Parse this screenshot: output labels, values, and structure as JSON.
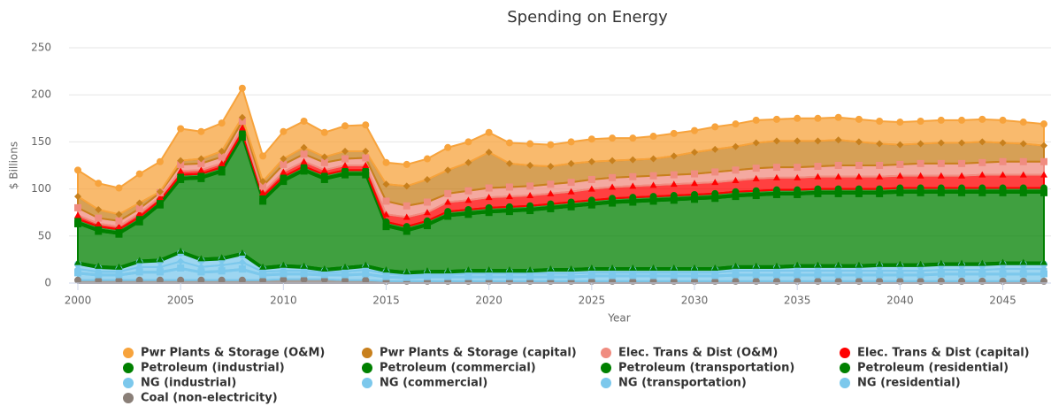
{
  "chart_data": {
    "type": "area_stacked",
    "title": "Spending on Energy",
    "x_label": "Year",
    "y_label": "$ Billions",
    "xlim": [
      2000,
      2047
    ],
    "xticks": [
      2000,
      2005,
      2010,
      2015,
      2020,
      2025,
      2030,
      2035,
      2040,
      2045
    ],
    "ylim": [
      0,
      250
    ],
    "yticks": [
      0,
      50,
      100,
      150,
      200,
      250
    ],
    "grid": true,
    "x": [
      2000,
      2001,
      2002,
      2003,
      2004,
      2005,
      2006,
      2007,
      2008,
      2009,
      2010,
      2011,
      2012,
      2013,
      2014,
      2015,
      2016,
      2017,
      2018,
      2019,
      2020,
      2021,
      2022,
      2023,
      2024,
      2025,
      2026,
      2027,
      2028,
      2029,
      2030,
      2031,
      2032,
      2033,
      2034,
      2035,
      2036,
      2037,
      2038,
      2039,
      2040,
      2041,
      2042,
      2043,
      2044,
      2045,
      2046,
      2047
    ],
    "series": [
      {
        "name": "Pwr Plants & Storage (O&M)",
        "color": "#f7a33c",
        "values": [
          28,
          28,
          28,
          31,
          32,
          34,
          29,
          30,
          31,
          27,
          29,
          28,
          26,
          27,
          28,
          23,
          23,
          22,
          24,
          22,
          21,
          22,
          23,
          23,
          23,
          24,
          24,
          23,
          24,
          24,
          23,
          24,
          24,
          24,
          23,
          24,
          24,
          24,
          24,
          24,
          24,
          24,
          24,
          24,
          24,
          24,
          23,
          23
        ]
      },
      {
        "name": "Pwr Plants & Storage (capital)",
        "color": "#c8801d",
        "values": [
          12,
          9,
          7,
          6,
          1,
          4,
          5,
          6,
          4,
          5,
          6,
          7,
          6,
          8,
          7,
          18,
          21,
          24,
          25,
          30,
          38,
          25,
          22,
          19,
          20,
          19,
          18,
          18,
          18,
          20,
          23,
          24,
          25,
          27,
          28,
          28,
          27,
          27,
          25,
          23,
          21,
          21,
          22,
          22,
          22,
          20,
          19,
          17
        ]
      },
      {
        "name": "Elec. Trans & Dist (O&M)",
        "color": "#f08c80",
        "values": [
          8,
          6,
          6,
          5,
          5,
          7,
          7,
          7,
          7,
          7,
          8,
          8,
          8,
          7,
          8,
          14,
          12,
          11,
          9,
          10,
          10,
          10,
          10,
          10,
          10,
          10,
          10,
          10,
          10,
          10,
          10,
          11,
          11,
          11,
          11,
          11,
          11,
          12,
          12,
          12,
          12,
          13,
          13,
          13,
          13,
          14,
          14,
          14
        ]
      },
      {
        "name": "Elec. Trans & Dist (capital)",
        "color": "#ff0000",
        "values": [
          4,
          3,
          3,
          4,
          3,
          4,
          4,
          4,
          5,
          4,
          5,
          5,
          5,
          5,
          5,
          8,
          10,
          9,
          10,
          10,
          11,
          11,
          11,
          11,
          11,
          12,
          12,
          12,
          12,
          12,
          12,
          12,
          12,
          13,
          13,
          13,
          13,
          13,
          13,
          13,
          13,
          13,
          13,
          13,
          14,
          14,
          14,
          14
        ]
      },
      {
        "name": "Petroleum (industrial)",
        "color": "#008000",
        "values": [
          3,
          3,
          3,
          3,
          3,
          3,
          3,
          3,
          3,
          3,
          3,
          3,
          3,
          3,
          3,
          3,
          3,
          3,
          3,
          3,
          3,
          3,
          3,
          3,
          3,
          3,
          3,
          3,
          3,
          3,
          3,
          3,
          3,
          3,
          3,
          3,
          3,
          3,
          3,
          3,
          3,
          3,
          3,
          3,
          3,
          3,
          3,
          3
        ]
      },
      {
        "name": "Petroleum (commercial)",
        "color": "#008000",
        "values": [
          2,
          2,
          2,
          2,
          2,
          2,
          2,
          2,
          2,
          2,
          2,
          2,
          2,
          2,
          2,
          2,
          2,
          2,
          2,
          2,
          2,
          2,
          2,
          2,
          2,
          2,
          2,
          2,
          2,
          2,
          2,
          2,
          2,
          2,
          2,
          2,
          2,
          2,
          2,
          2,
          2,
          2,
          2,
          2,
          2,
          2,
          2,
          2
        ]
      },
      {
        "name": "Petroleum (transportation)",
        "color": "#008000",
        "values": [
          41,
          37,
          35,
          41,
          58,
          76,
          85,
          91,
          123,
          70,
          89,
          101,
          95,
          98,
          96,
          46,
          43,
          48,
          58,
          59,
          61,
          62,
          63,
          64,
          66,
          67,
          69,
          70,
          71,
          72,
          73,
          74,
          74,
          75,
          76,
          75,
          76,
          76,
          76,
          75,
          76,
          76,
          75,
          75,
          75,
          74,
          74,
          74
        ]
      },
      {
        "name": "Petroleum (residential)",
        "color": "#008000",
        "values": [
          2,
          2,
          2,
          2,
          2,
          2,
          2,
          2,
          2,
          2,
          2,
          2,
          2,
          2,
          2,
          2,
          2,
          2,
          2,
          2,
          2,
          2,
          2,
          2,
          2,
          2,
          2,
          2,
          2,
          2,
          2,
          2,
          2,
          2,
          2,
          2,
          2,
          2,
          2,
          2,
          2,
          2,
          2,
          2,
          2,
          2,
          2,
          2
        ]
      },
      {
        "name": "NG (industrial)",
        "color": "#7cc8ec",
        "values": [
          5,
          4,
          3,
          5,
          6,
          9,
          7,
          6,
          8,
          3,
          4,
          3,
          2,
          3,
          3,
          2,
          2,
          2,
          2,
          2,
          2,
          2,
          2,
          3,
          3,
          3,
          3,
          3,
          3,
          3,
          3,
          3,
          3,
          3,
          3,
          4,
          4,
          4,
          4,
          5,
          5,
          5,
          5,
          5,
          5,
          5,
          5,
          5
        ]
      },
      {
        "name": "NG (commercial)",
        "color": "#7cc8ec",
        "values": [
          4,
          3,
          3,
          5,
          5,
          7,
          5,
          6,
          7,
          3,
          3,
          3,
          2,
          3,
          4,
          3,
          2,
          2,
          2,
          3,
          3,
          3,
          3,
          3,
          3,
          3,
          3,
          3,
          3,
          3,
          3,
          3,
          4,
          4,
          4,
          4,
          4,
          4,
          4,
          4,
          4,
          4,
          4,
          4,
          4,
          5,
          5,
          5
        ]
      },
      {
        "name": "NG (transportation)",
        "color": "#7cc8ec",
        "values": [
          1,
          1,
          1,
          1,
          1,
          1,
          1,
          1,
          1,
          1,
          1,
          1,
          1,
          1,
          1,
          1,
          1,
          1,
          1,
          1,
          1,
          1,
          1,
          1,
          1,
          1,
          1,
          1,
          1,
          1,
          1,
          1,
          1,
          1,
          1,
          1,
          1,
          1,
          1,
          1,
          1,
          1,
          1,
          1,
          1,
          1,
          1,
          1
        ]
      },
      {
        "name": "NG (residential)",
        "color": "#7cc8ec",
        "values": [
          7,
          5,
          5,
          8,
          8,
          12,
          8,
          9,
          11,
          5,
          5,
          5,
          4,
          5,
          6,
          4,
          3,
          4,
          4,
          4,
          4,
          4,
          4,
          4,
          4,
          5,
          5,
          5,
          5,
          5,
          5,
          5,
          6,
          6,
          6,
          6,
          6,
          6,
          6,
          6,
          6,
          6,
          7,
          7,
          7,
          7,
          7,
          7
        ]
      },
      {
        "name": "Coal (non-electricity)",
        "color": "#8a7f78",
        "values": [
          3,
          3,
          3,
          3,
          3,
          3,
          3,
          3,
          3,
          3,
          4,
          4,
          4,
          3,
          3,
          2,
          2,
          2,
          2,
          2,
          2,
          2,
          2,
          2,
          2,
          2,
          2,
          2,
          2,
          2,
          2,
          2,
          2,
          2,
          2,
          2,
          2,
          2,
          2,
          2,
          2,
          2,
          2,
          2,
          2,
          2,
          2,
          2
        ]
      }
    ]
  }
}
